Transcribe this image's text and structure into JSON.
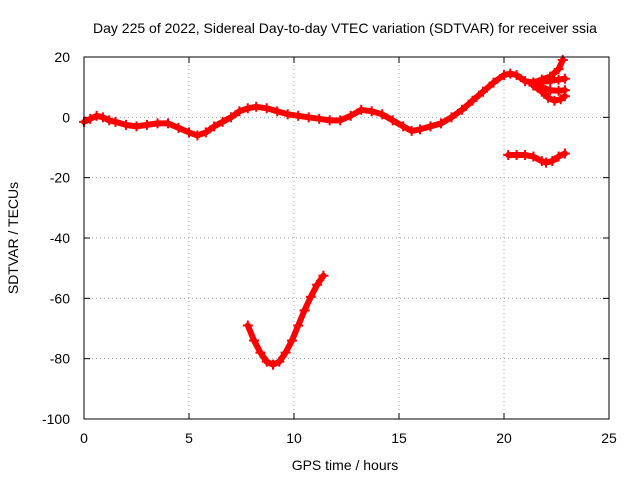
{
  "chart_data": {
    "type": "line",
    "title": "Day 225 of 2022, Sidereal Day-to-day VTEC variation (SDTVAR) for receiver ssia",
    "xlabel": "GPS time / hours",
    "ylabel": "SDTVAR / TECUs",
    "xlim": [
      0,
      25
    ],
    "ylim": [
      -100,
      20
    ],
    "xticks": [
      "0",
      "5",
      "10",
      "15",
      "20",
      "25"
    ],
    "yticks": [
      "-100",
      "-80",
      "-60",
      "-40",
      "-20",
      "0",
      "20"
    ],
    "grid": true,
    "legend": "none",
    "color": "#ff0000",
    "series": [
      {
        "points": [
          [
            0.0,
            -1.5
          ],
          [
            0.3,
            -0.5
          ],
          [
            0.6,
            0.5
          ],
          [
            0.9,
            0.0
          ],
          [
            1.2,
            -1.0
          ],
          [
            1.5,
            -1.5
          ],
          [
            2.0,
            -2.5
          ],
          [
            2.5,
            -3.0
          ],
          [
            3.0,
            -2.5
          ],
          [
            3.5,
            -2.0
          ],
          [
            4.0,
            -2.0
          ],
          [
            4.5,
            -3.5
          ],
          [
            5.0,
            -5.0
          ],
          [
            5.4,
            -6.0
          ],
          [
            5.8,
            -5.0
          ],
          [
            6.2,
            -3.0
          ],
          [
            6.6,
            -1.5
          ],
          [
            7.0,
            0.0
          ],
          [
            7.4,
            2.0
          ],
          [
            7.8,
            3.0
          ],
          [
            8.2,
            3.5
          ],
          [
            8.7,
            3.0
          ],
          [
            9.2,
            2.0
          ],
          [
            9.7,
            1.0
          ],
          [
            10.2,
            0.5
          ],
          [
            10.7,
            0.0
          ],
          [
            11.2,
            -0.5
          ],
          [
            11.7,
            -1.0
          ],
          [
            12.2,
            -1.0
          ],
          [
            12.7,
            0.5
          ],
          [
            13.2,
            2.5
          ],
          [
            13.7,
            2.0
          ],
          [
            14.2,
            1.0
          ],
          [
            14.7,
            -1.0
          ],
          [
            15.2,
            -3.0
          ],
          [
            15.6,
            -4.5
          ],
          [
            16.0,
            -4.0
          ],
          [
            16.5,
            -3.0
          ],
          [
            17.0,
            -2.0
          ],
          [
            17.5,
            0.0
          ],
          [
            18.0,
            2.5
          ],
          [
            18.5,
            5.5
          ],
          [
            19.0,
            8.5
          ],
          [
            19.5,
            11.5
          ],
          [
            20.0,
            14.0
          ],
          [
            20.3,
            14.5
          ],
          [
            20.6,
            14.0
          ],
          [
            21.0,
            12.0
          ],
          [
            21.4,
            11.5
          ]
        ]
      },
      {
        "points": [
          [
            21.4,
            11.5
          ],
          [
            21.8,
            12.5
          ],
          [
            22.2,
            13.5
          ],
          [
            22.6,
            16.0
          ],
          [
            22.8,
            19.0
          ]
        ]
      },
      {
        "points": [
          [
            21.4,
            11.5
          ],
          [
            21.8,
            11.8
          ],
          [
            22.2,
            12.0
          ],
          [
            22.6,
            12.5
          ],
          [
            22.9,
            12.8
          ]
        ]
      },
      {
        "points": [
          [
            21.4,
            11.0
          ],
          [
            21.8,
            10.0
          ],
          [
            22.2,
            9.0
          ],
          [
            22.6,
            8.8
          ],
          [
            22.9,
            9.0
          ]
        ]
      },
      {
        "points": [
          [
            21.4,
            10.5
          ],
          [
            21.8,
            8.5
          ],
          [
            22.1,
            6.5
          ],
          [
            22.4,
            5.5
          ],
          [
            22.7,
            6.0
          ],
          [
            22.9,
            7.0
          ]
        ]
      },
      {
        "points": [
          [
            20.2,
            -12.5
          ],
          [
            20.6,
            -12.5
          ],
          [
            21.0,
            -12.5
          ],
          [
            21.4,
            -13.0
          ],
          [
            21.8,
            -14.5
          ],
          [
            22.0,
            -15.0
          ],
          [
            22.3,
            -14.5
          ],
          [
            22.6,
            -13.0
          ],
          [
            22.9,
            -12.0
          ]
        ]
      },
      {
        "points": [
          [
            7.8,
            -69.0
          ],
          [
            8.1,
            -74.0
          ],
          [
            8.4,
            -78.0
          ],
          [
            8.7,
            -81.0
          ],
          [
            9.0,
            -82.0
          ],
          [
            9.3,
            -81.0
          ],
          [
            9.6,
            -78.0
          ],
          [
            9.9,
            -74.0
          ],
          [
            10.2,
            -69.0
          ],
          [
            10.5,
            -64.0
          ],
          [
            10.8,
            -59.5
          ],
          [
            11.1,
            -55.5
          ],
          [
            11.4,
            -52.5
          ]
        ]
      }
    ]
  }
}
